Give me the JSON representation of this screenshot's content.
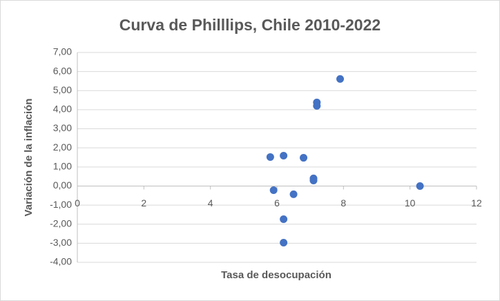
{
  "chart_data": {
    "type": "scatter",
    "title": "Curva de Philllips, Chile 2010-2022",
    "x_label": "Tasa de desocupación",
    "y_label": "Variación de la inflación",
    "color": "#4472c4",
    "grid": true,
    "x": [
      5.8,
      5.9,
      6.2,
      6.2,
      6.2,
      6.5,
      6.8,
      7.1,
      7.1,
      7.2,
      7.2,
      7.9,
      10.3
    ],
    "values": [
      1.52,
      -0.22,
      1.59,
      -1.74,
      -2.97,
      -0.43,
      1.48,
      0.4,
      0.29,
      4.38,
      4.2,
      5.61,
      0.0
    ],
    "xlim": [
      0,
      12
    ],
    "xticks": [
      0,
      2,
      4,
      6,
      8,
      10,
      12
    ],
    "ylim": [
      -4,
      7
    ],
    "yticks": [
      {
        "value": -4,
        "label": "-4,00"
      },
      {
        "value": -3,
        "label": "-3,00"
      },
      {
        "value": -2,
        "label": "-2,00"
      },
      {
        "value": -1,
        "label": "-1,00"
      },
      {
        "value": 0,
        "label": "0,00"
      },
      {
        "value": 1,
        "label": "1,00"
      },
      {
        "value": 2,
        "label": "2,00"
      },
      {
        "value": 3,
        "label": "3,00"
      },
      {
        "value": 4,
        "label": "4,00"
      },
      {
        "value": 5,
        "label": "5,00"
      },
      {
        "value": 6,
        "label": "6,00"
      },
      {
        "value": 7,
        "label": "7,00"
      }
    ]
  }
}
